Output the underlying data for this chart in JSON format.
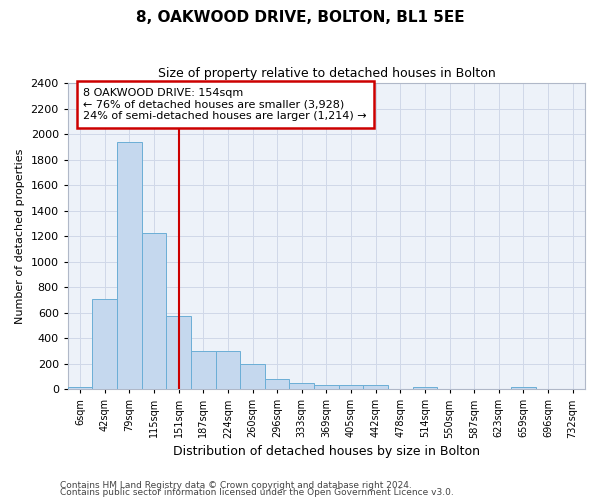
{
  "title": "8, OAKWOOD DRIVE, BOLTON, BL1 5EE",
  "subtitle": "Size of property relative to detached houses in Bolton",
  "xlabel": "Distribution of detached houses by size in Bolton",
  "ylabel": "Number of detached properties",
  "footnote1": "Contains HM Land Registry data © Crown copyright and database right 2024.",
  "footnote2": "Contains public sector information licensed under the Open Government Licence v3.0.",
  "annotation_line1": "8 OAKWOOD DRIVE: 154sqm",
  "annotation_line2": "← 76% of detached houses are smaller (3,928)",
  "annotation_line3": "24% of semi-detached houses are larger (1,214) →",
  "bar_labels": [
    "6sqm",
    "42sqm",
    "79sqm",
    "115sqm",
    "151sqm",
    "187sqm",
    "224sqm",
    "260sqm",
    "296sqm",
    "333sqm",
    "369sqm",
    "405sqm",
    "442sqm",
    "478sqm",
    "514sqm",
    "550sqm",
    "587sqm",
    "623sqm",
    "659sqm",
    "696sqm",
    "732sqm"
  ],
  "bar_values": [
    15,
    705,
    1940,
    1225,
    575,
    300,
    300,
    200,
    80,
    47,
    35,
    35,
    30,
    5,
    18,
    3,
    2,
    2,
    13,
    2,
    2
  ],
  "bar_color": "#c5d8ee",
  "bar_edge_color": "#6baed6",
  "vline_color": "#cc0000",
  "vline_x": 4.0,
  "ylim_max": 2400,
  "ytick_step": 200,
  "annotation_box_edgecolor": "#cc0000",
  "grid_color": "#d0d8e8",
  "bg_color": "#edf2f9",
  "title_fontsize": 11,
  "subtitle_fontsize": 9,
  "xlabel_fontsize": 9,
  "ylabel_fontsize": 8,
  "tick_fontsize": 7,
  "ytick_fontsize": 8,
  "footnote_fontsize": 6.5,
  "annotation_fontsize": 8
}
